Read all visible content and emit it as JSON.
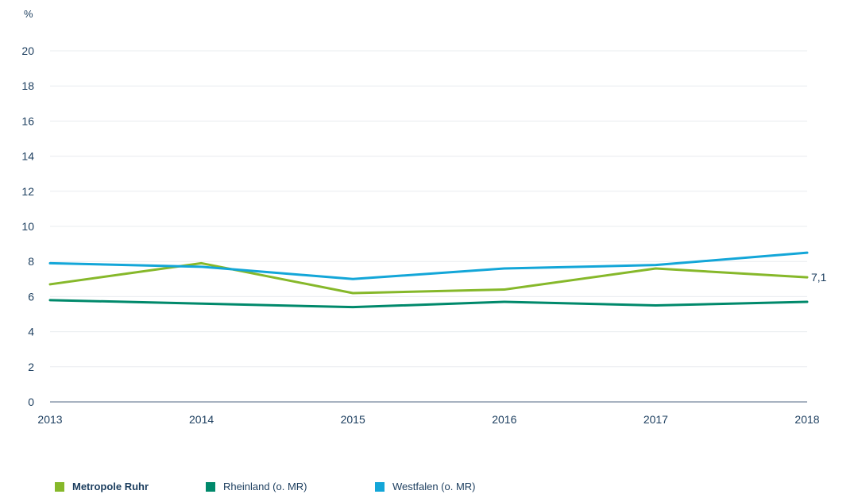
{
  "chart_data": {
    "type": "line",
    "unit_label": "%",
    "x": [
      "2013",
      "2014",
      "2015",
      "2016",
      "2017",
      "2018"
    ],
    "ylim": [
      0,
      20
    ],
    "yticks": [
      "0",
      "2",
      "4",
      "6",
      "8",
      "10",
      "12",
      "14",
      "16",
      "18",
      "20"
    ],
    "grid": true,
    "legend_position": "bottom",
    "series": [
      {
        "name": "Metropole Ruhr",
        "color": "#86b82a",
        "values": [
          6.7,
          7.9,
          6.2,
          6.4,
          7.6,
          7.1
        ],
        "end_label": "7,1",
        "bold_legend": true
      },
      {
        "name": "Rheinland (o. MR)",
        "color": "#00896b",
        "values": [
          5.8,
          5.6,
          5.4,
          5.7,
          5.5,
          5.7
        ]
      },
      {
        "name": "Westfalen (o. MR)",
        "color": "#13a6d8",
        "values": [
          7.9,
          7.7,
          7.0,
          7.6,
          7.8,
          8.5
        ]
      }
    ]
  }
}
